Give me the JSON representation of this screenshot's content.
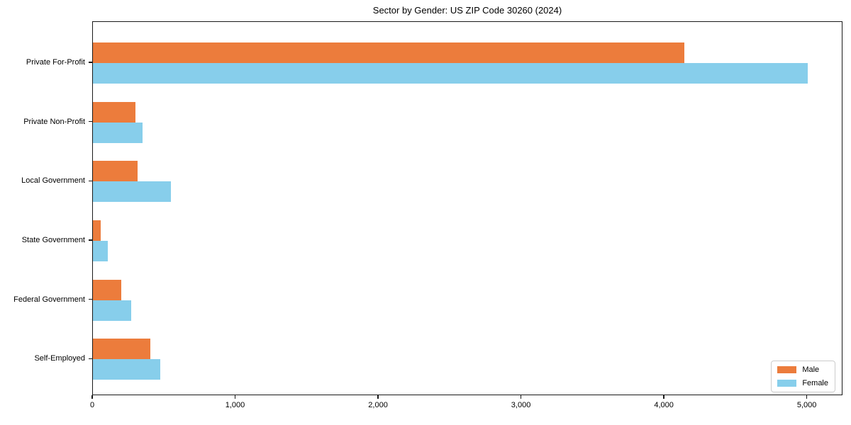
{
  "chart_data": {
    "type": "bar",
    "orientation": "horizontal",
    "title": "Sector by Gender: US ZIP Code 30260 (2024)",
    "categories": [
      "Private For-Profit",
      "Private Non-Profit",
      "Local Government",
      "State Government",
      "Federal Government",
      "Self-Employed"
    ],
    "series": [
      {
        "name": "Male",
        "color": "#ec7c3c",
        "values": [
          4140,
          300,
          315,
          55,
          200,
          400
        ]
      },
      {
        "name": "Female",
        "color": "#87ceeb",
        "values": [
          5000,
          345,
          545,
          105,
          270,
          470
        ]
      }
    ],
    "x_ticks": [
      0,
      1000,
      2000,
      3000,
      4000,
      5000
    ],
    "x_tick_labels": [
      "0",
      "1,000",
      "2,000",
      "3,000",
      "4,000",
      "5,000"
    ],
    "xlim": [
      0,
      5250
    ],
    "xlabel": "",
    "ylabel": "",
    "grid": false,
    "legend_position": "lower right",
    "colors": {
      "axis": "#1a1a1a",
      "background": "#ffffff",
      "legend_border": "#cccccc"
    }
  }
}
